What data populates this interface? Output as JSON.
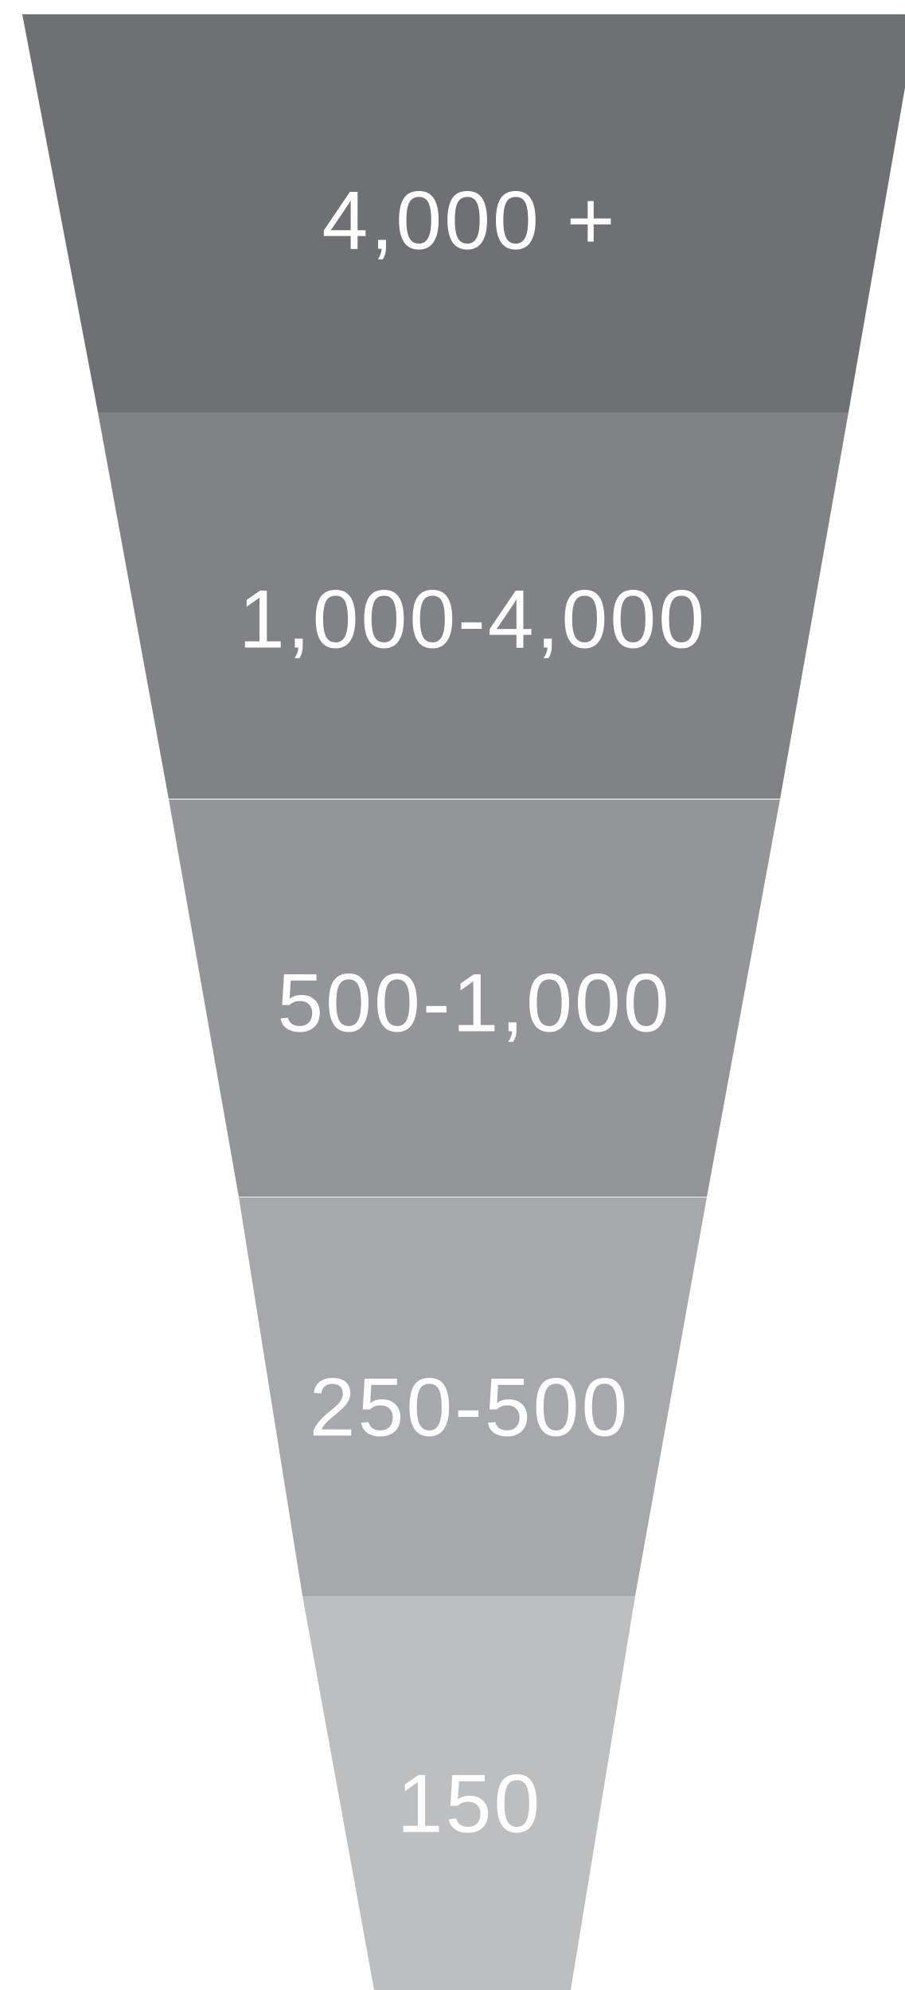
{
  "funnel": {
    "tiers": [
      {
        "label": "4,000 +",
        "color": "#6f7073"
      },
      {
        "label": "1,000-4,000",
        "color": "#818285"
      },
      {
        "label": "500-1,000",
        "color": "#949598"
      },
      {
        "label": "250-500",
        "color": "#a7a8ab"
      },
      {
        "label": "150",
        "color": "#bdbec0"
      }
    ]
  }
}
